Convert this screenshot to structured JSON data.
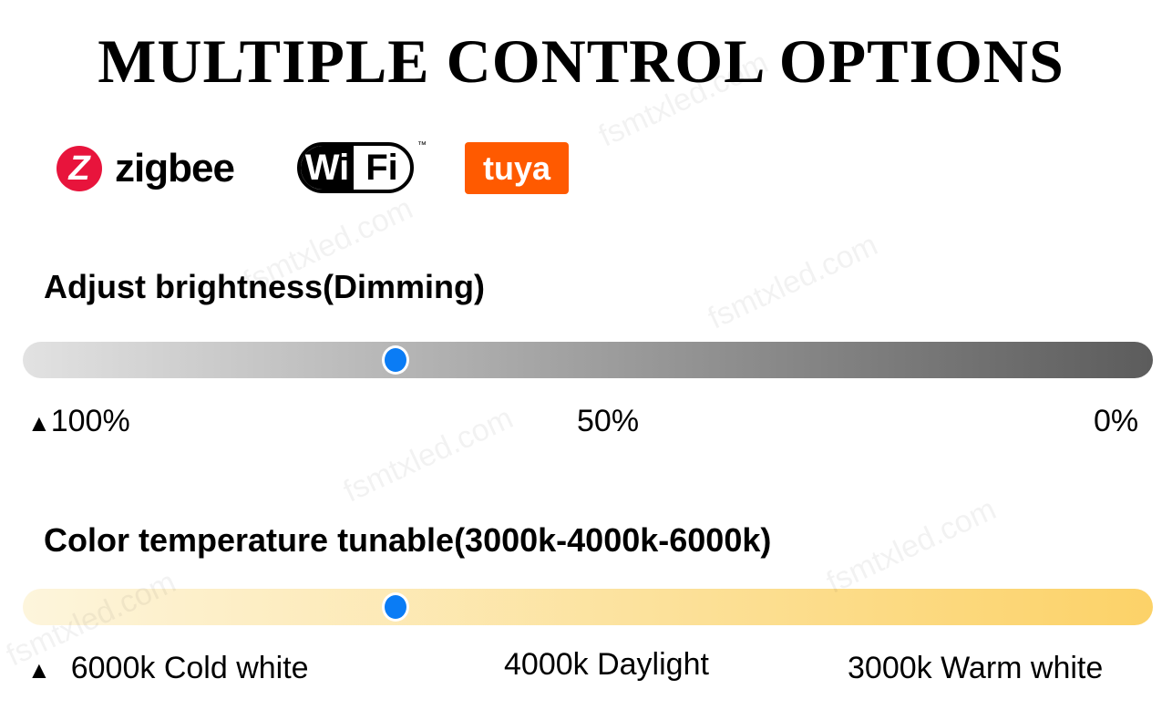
{
  "title": "MULTIPLE CONTROL OPTIONS",
  "logos": {
    "zigbee": "zigbee",
    "wifi_left": "Wi",
    "wifi_right": "Fi",
    "wifi_tm": "™",
    "tuya": "tuya"
  },
  "brightness": {
    "heading": "Adjust brightness(Dimming)",
    "marker": "▲",
    "labels": [
      "100%",
      "50%",
      "0%"
    ],
    "thumb_position_fraction": 0.33,
    "gradient": [
      "#e2e2e2",
      "#5c5c5c"
    ],
    "thumb_color": "#0a7cf5"
  },
  "color_temp": {
    "heading": "Color temperature tunable(3000k-4000k-6000k)",
    "marker": "▲",
    "labels": [
      "6000k Cold white",
      "4000k Daylight",
      "3000k Warm white"
    ],
    "thumb_position_fraction": 0.33,
    "gradient": [
      "#fdf5dc",
      "#fcd268"
    ],
    "thumb_color": "#0a7cf5"
  },
  "watermark": "fsmtxled.com",
  "colors": {
    "zigbee": "#e8143c",
    "tuya": "#ff5a00"
  }
}
